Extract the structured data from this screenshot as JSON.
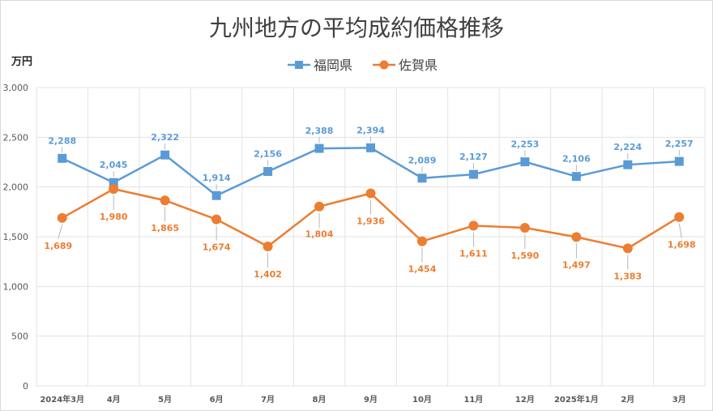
{
  "chart_data": {
    "type": "line",
    "title": "九州地方の平均成約価格推移",
    "ylabel": "万円",
    "ylim": [
      0,
      3000
    ],
    "yticks": [
      0,
      500,
      1000,
      1500,
      2000,
      2500,
      3000
    ],
    "ytick_labels": [
      "0",
      "500",
      "1,000",
      "1,500",
      "2,000",
      "2,500",
      "3,000"
    ],
    "grid": true,
    "legend_position": "top",
    "categories": [
      "2024年3月",
      "4月",
      "5月",
      "6月",
      "7月",
      "8月",
      "9月",
      "10月",
      "11月",
      "12月",
      "2025年1月",
      "2月",
      "3月"
    ],
    "series": [
      {
        "name": "福岡県",
        "color": "#5b9bd5",
        "marker": "square",
        "values": [
          2288,
          2045,
          2322,
          1914,
          2156,
          2388,
          2394,
          2089,
          2127,
          2253,
          2106,
          2224,
          2257
        ],
        "labels": [
          "2,288",
          "2,045",
          "2,322",
          "1,914",
          "2,156",
          "2,388",
          "2,394",
          "2,089",
          "2,127",
          "2,253",
          "2,106",
          "2,224",
          "2,257"
        ]
      },
      {
        "name": "佐賀県",
        "color": "#ed7d31",
        "marker": "circle",
        "values": [
          1689,
          1980,
          1865,
          1674,
          1402,
          1804,
          1936,
          1454,
          1611,
          1590,
          1497,
          1383,
          1698
        ],
        "labels": [
          "1,689",
          "1,980",
          "1,865",
          "1,674",
          "1,402",
          "1,804",
          "1,936",
          "1,454",
          "1,611",
          "1,590",
          "1,497",
          "1,383",
          "1,698"
        ]
      }
    ]
  }
}
